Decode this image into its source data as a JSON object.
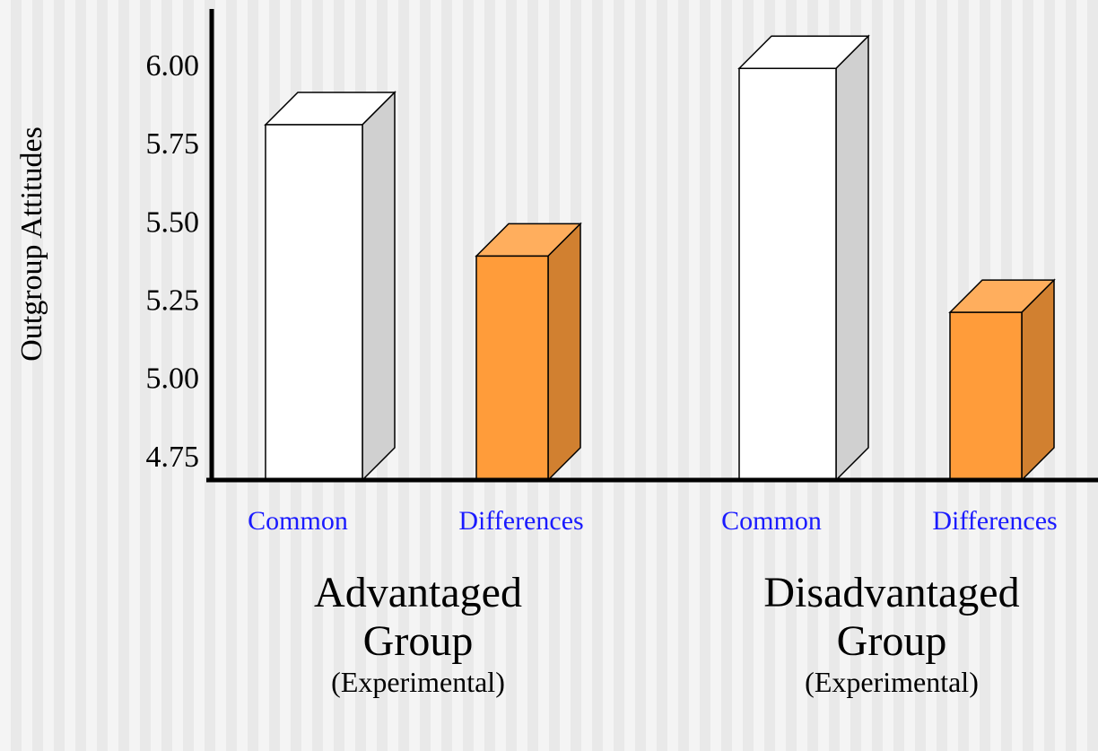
{
  "chart_data": {
    "type": "bar3d",
    "y_label": "Outgroup Attitudes",
    "categories": [
      "Advantaged Group",
      "Disadvantaged Group"
    ],
    "category_notes": [
      "(Experimental)",
      "(Experimental)"
    ],
    "series": [
      {
        "name": "Common",
        "color": "#ffffff",
        "values": [
          5.82,
          6.0
        ]
      },
      {
        "name": "Differences",
        "color": "#ff9c3a",
        "values": [
          5.4,
          5.22
        ]
      }
    ],
    "ylim": [
      4.684,
      6.19
    ],
    "yticks": [
      {
        "value": 4.75,
        "label": "4.75"
      },
      {
        "value": 5,
        "label": "5.00"
      },
      {
        "value": 5.25,
        "label": "5.25"
      },
      {
        "value": 5.5,
        "label": "5.50"
      },
      {
        "value": 5.75,
        "label": "5.75"
      },
      {
        "value": 6,
        "label": "6.00"
      }
    ]
  }
}
